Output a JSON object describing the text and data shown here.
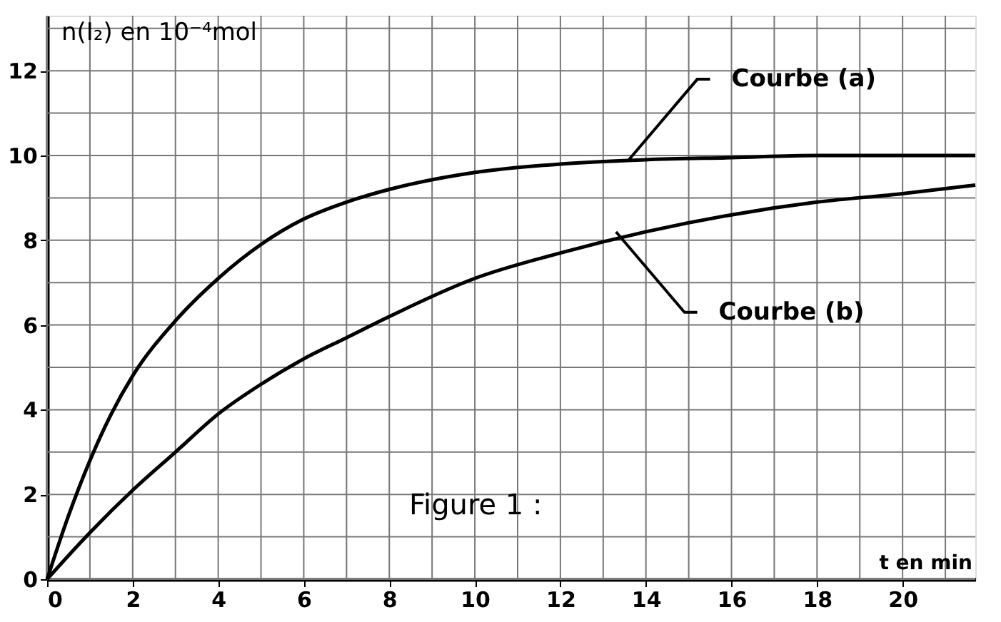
{
  "chart_data": {
    "type": "line",
    "xlabel": "t en min",
    "ylabel": "n(I₂) en 10⁻⁴mol",
    "xlim": [
      0,
      21.7
    ],
    "ylim": [
      0,
      13.3
    ],
    "xticks": [
      0,
      {
        "value": 1,
        "label": null
      },
      2,
      {
        "value": 3,
        "label": null
      },
      4,
      {
        "value": 5,
        "label": null
      },
      6,
      {
        "value": 7,
        "label": null
      },
      8,
      {
        "value": 9,
        "label": null
      },
      10,
      {
        "value": 11,
        "label": null
      },
      12,
      {
        "value": 13,
        "label": null
      },
      14,
      {
        "value": 15,
        "label": null
      },
      16,
      {
        "value": 17,
        "label": null
      },
      18,
      {
        "value": 19,
        "label": null
      },
      20,
      {
        "value": 21,
        "label": null
      }
    ],
    "yticks": [
      0,
      {
        "value": 1,
        "label": null
      },
      2,
      {
        "value": 3,
        "label": null
      },
      4,
      {
        "value": 5,
        "label": null
      },
      6,
      {
        "value": 7,
        "label": null
      },
      8,
      {
        "value": 9,
        "label": null
      },
      10,
      {
        "value": 11,
        "label": null
      },
      12,
      {
        "value": 13,
        "label": null
      }
    ],
    "grid": true,
    "marker": "none",
    "line_style": "solid",
    "series": [
      {
        "color": "#000000",
        "x": [
          0,
          0.5,
          1,
          1.5,
          2,
          3,
          4,
          5,
          6,
          7,
          8,
          10,
          12,
          14,
          16,
          18,
          20,
          21.7
        ],
        "values": [
          0,
          1.5,
          2.8,
          3.9,
          4.8,
          6.1,
          7.1,
          7.9,
          8.5,
          8.9,
          9.2,
          9.6,
          9.8,
          9.9,
          9.95,
          10,
          10,
          10
        ]
      },
      {
        "color": "#000000",
        "x": [
          0,
          1,
          2,
          3,
          4,
          5,
          6,
          7,
          8,
          10,
          12,
          14,
          16,
          18,
          20,
          21.7
        ],
        "values": [
          0,
          1.1,
          2.1,
          3.0,
          3.9,
          4.6,
          5.2,
          5.7,
          6.2,
          7.1,
          7.7,
          8.2,
          8.6,
          8.9,
          9.1,
          9.3
        ]
      }
    ],
    "annotations": [
      {
        "text": "Courbe (a)",
        "x": 13.6,
        "y": 9.9
      },
      {
        "text": "Courbe (b)",
        "x": 13.3,
        "y": 8.2
      },
      "Figure 1 :"
    ]
  }
}
